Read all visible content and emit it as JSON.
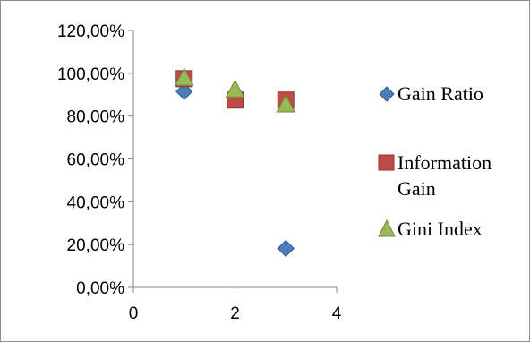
{
  "chart_data": {
    "type": "scatter",
    "title": "",
    "xlabel": "",
    "ylabel": "",
    "xlim": [
      0,
      4
    ],
    "ylim": [
      0,
      1.2
    ],
    "x_ticks": [
      "0",
      "2",
      "4"
    ],
    "y_ticks": [
      "0,00%",
      "20,00%",
      "40,00%",
      "60,00%",
      "80,00%",
      "100,00%",
      "120,00%"
    ],
    "grid": false,
    "legend_position": "right",
    "series": [
      {
        "name": "Gain Ratio",
        "marker": "diamond",
        "color": "#4a7ebb",
        "x": [
          1,
          2,
          3
        ],
        "y": [
          0.915,
          0.875,
          0.182
        ]
      },
      {
        "name": "Information Gain",
        "marker": "square",
        "color": "#be4b48",
        "x": [
          1,
          2,
          3
        ],
        "y": [
          0.975,
          0.875,
          0.875
        ]
      },
      {
        "name": "Gini Index",
        "marker": "triangle",
        "color": "#98b954",
        "x": [
          1,
          2,
          3
        ],
        "y": [
          0.98,
          0.925,
          0.855
        ]
      }
    ]
  },
  "legend": {
    "gain_ratio": "Gain Ratio",
    "information_gain_line1": "Information",
    "information_gain_line2": "Gain",
    "gini_index": "Gini Index"
  }
}
